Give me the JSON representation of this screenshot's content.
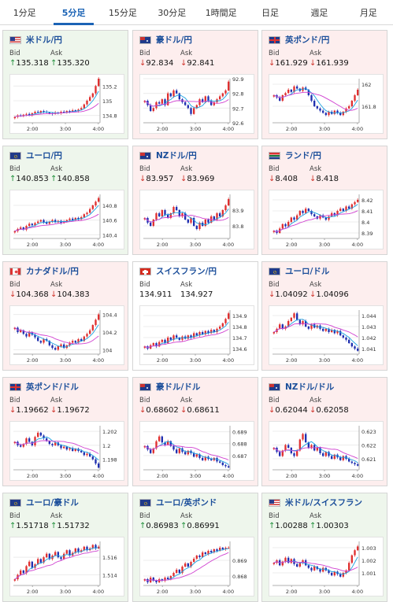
{
  "tabs": [
    {
      "label": "1分足",
      "active": false
    },
    {
      "label": "5分足",
      "active": true
    },
    {
      "label": "15分足",
      "active": false
    },
    {
      "label": "30分足",
      "active": false
    },
    {
      "label": "1時間足",
      "active": false
    },
    {
      "label": "日足",
      "active": false
    },
    {
      "label": "週足",
      "active": false
    },
    {
      "label": "月足",
      "active": false
    }
  ],
  "labels": {
    "bid": "Bid",
    "ask": "Ask"
  },
  "colors": {
    "up_bg": "#eef6ec",
    "down_bg": "#fdeeee",
    "candle_up": "#e03030",
    "candle_down": "#2030b0",
    "ma_fast": "#1aa0e0",
    "ma_slow": "#d040d0"
  },
  "cards": [
    {
      "pair": "米ドル/円",
      "flag": "us-jp",
      "trend": "up",
      "bid": "135.318",
      "ask": "135.320",
      "dir": "up",
      "chart_data": {
        "type": "candlestick",
        "x_ticks": [
          "2:00",
          "3:00",
          "4:00"
        ],
        "y_ticks": [
          "135.2",
          "135",
          "134.8"
        ],
        "ylim": [
          134.7,
          135.3
        ],
        "tick_values": [
          135.2,
          135.0,
          134.8
        ],
        "closes": [
          134.78,
          134.8,
          134.79,
          134.81,
          134.82,
          134.8,
          134.83,
          134.85,
          134.84,
          134.86,
          134.85,
          134.84,
          134.83,
          134.82,
          134.84,
          134.83,
          134.85,
          134.84,
          134.86,
          134.85,
          134.87,
          134.86,
          134.88,
          134.9,
          134.95,
          135.0,
          135.05,
          135.1,
          135.2,
          135.3
        ]
      }
    },
    {
      "pair": "豪ドル/円",
      "flag": "au-jp",
      "trend": "down",
      "bid": "92.834",
      "ask": "92.841",
      "dir": "down",
      "chart_data": {
        "type": "candlestick",
        "x_ticks": [
          "2:00",
          "3:00",
          "4:00"
        ],
        "y_ticks": [
          "92.9",
          "92.8",
          "92.7",
          "92.6"
        ],
        "ylim": [
          92.6,
          92.9
        ],
        "tick_values": [
          92.9,
          92.8,
          92.7,
          92.6
        ],
        "closes": [
          92.75,
          92.72,
          92.68,
          92.7,
          92.74,
          92.73,
          92.76,
          92.72,
          92.8,
          92.78,
          92.82,
          92.8,
          92.76,
          92.74,
          92.72,
          92.7,
          92.66,
          92.7,
          92.72,
          92.76,
          92.74,
          92.78,
          92.75,
          92.72,
          92.74,
          92.76,
          92.78,
          92.8,
          92.82,
          92.88
        ]
      }
    },
    {
      "pair": "英ポンド/円",
      "flag": "gb-jp",
      "trend": "down",
      "bid": "161.929",
      "ask": "161.939",
      "dir": "down",
      "chart_data": {
        "type": "candlestick",
        "x_ticks": [
          "2:00",
          "3:00",
          "4:00"
        ],
        "y_ticks": [
          "162",
          "161.8"
        ],
        "ylim": [
          161.65,
          162.05
        ],
        "tick_values": [
          162.0,
          161.8
        ],
        "closes": [
          161.9,
          161.88,
          161.85,
          161.9,
          161.92,
          161.95,
          161.93,
          161.98,
          161.96,
          161.94,
          161.97,
          161.95,
          161.9,
          161.85,
          161.8,
          161.78,
          161.76,
          161.74,
          161.72,
          161.75,
          161.73,
          161.76,
          161.74,
          161.72,
          161.75,
          161.78,
          161.8,
          161.85,
          161.9,
          161.95
        ]
      }
    },
    {
      "pair": "ユーロ/円",
      "flag": "eu-jp",
      "trend": "up",
      "bid": "140.853",
      "ask": "140.858",
      "dir": "up",
      "chart_data": {
        "type": "candlestick",
        "x_ticks": [
          "2:00",
          "3:00",
          "4:00"
        ],
        "y_ticks": [
          "140.8",
          "140.6",
          "140.4"
        ],
        "ylim": [
          140.35,
          140.95
        ],
        "tick_values": [
          140.8,
          140.6,
          140.4
        ],
        "closes": [
          140.45,
          140.48,
          140.5,
          140.47,
          140.52,
          140.55,
          140.53,
          140.56,
          140.58,
          140.6,
          140.57,
          140.55,
          140.58,
          140.6,
          140.57,
          140.59,
          140.56,
          140.58,
          140.6,
          140.62,
          140.6,
          140.63,
          140.61,
          140.64,
          140.68,
          140.7,
          140.75,
          140.8,
          140.85,
          140.9
        ]
      }
    },
    {
      "pair": "NZドル/円",
      "flag": "nz-jp",
      "trend": "down",
      "bid": "83.957",
      "ask": "83.969",
      "dir": "down",
      "chart_data": {
        "type": "candlestick",
        "x_ticks": [
          "2:00",
          "3:00",
          "4:00"
        ],
        "y_ticks": [
          "83.9",
          "83.8"
        ],
        "ylim": [
          83.72,
          84.0
        ],
        "tick_values": [
          83.9,
          83.8
        ],
        "closes": [
          83.85,
          83.82,
          83.8,
          83.84,
          83.88,
          83.86,
          83.9,
          83.87,
          83.85,
          83.88,
          83.92,
          83.9,
          83.86,
          83.88,
          83.84,
          83.82,
          83.85,
          83.8,
          83.78,
          83.82,
          83.8,
          83.84,
          83.82,
          83.86,
          83.84,
          83.88,
          83.86,
          83.9,
          83.93,
          83.97
        ]
      }
    },
    {
      "pair": "ランド/円",
      "flag": "za-jp",
      "trend": "down",
      "bid": "8.408",
      "ask": "8.418",
      "dir": "down",
      "chart_data": {
        "type": "candlestick",
        "x_ticks": [
          "2:00",
          "3:00",
          "4:00"
        ],
        "y_ticks": [
          "8.42",
          "8.41",
          "8.4",
          "8.39"
        ],
        "ylim": [
          8.385,
          8.425
        ],
        "tick_values": [
          8.42,
          8.41,
          8.4,
          8.39
        ],
        "closes": [
          8.392,
          8.39,
          8.394,
          8.398,
          8.396,
          8.4,
          8.404,
          8.402,
          8.406,
          8.41,
          8.408,
          8.412,
          8.41,
          8.407,
          8.405,
          8.403,
          8.406,
          8.404,
          8.402,
          8.405,
          8.408,
          8.406,
          8.41,
          8.412,
          8.41,
          8.414,
          8.412,
          8.416,
          8.418,
          8.42
        ]
      }
    },
    {
      "pair": "カナダドル/円",
      "flag": "ca-jp",
      "trend": "down",
      "bid": "104.368",
      "ask": "104.383",
      "dir": "down",
      "chart_data": {
        "type": "candlestick",
        "x_ticks": [
          "2:00",
          "3:00",
          "4:00"
        ],
        "y_ticks": [
          "104.4",
          "104.2",
          "104"
        ],
        "ylim": [
          103.95,
          104.45
        ],
        "tick_values": [
          104.4,
          104.2,
          104.0
        ],
        "closes": [
          104.25,
          104.2,
          104.22,
          104.18,
          104.15,
          104.2,
          104.17,
          104.14,
          104.1,
          104.08,
          104.12,
          104.1,
          104.05,
          104.02,
          104.0,
          104.04,
          104.06,
          104.02,
          104.05,
          104.08,
          104.1,
          104.08,
          104.12,
          104.1,
          104.15,
          104.18,
          104.22,
          104.28,
          104.34,
          104.4
        ]
      }
    },
    {
      "pair": "スイスフラン/円",
      "flag": "ch-jp",
      "trend": "flat",
      "bid": "134.911",
      "ask": "134.927",
      "dir": "none",
      "chart_data": {
        "type": "candlestick",
        "x_ticks": [
          "2:00",
          "3:00",
          "4:00"
        ],
        "y_ticks": [
          "134.9",
          "134.8",
          "134.7",
          "134.6"
        ],
        "ylim": [
          134.55,
          134.95
        ],
        "tick_values": [
          134.9,
          134.8,
          134.7,
          134.6
        ],
        "closes": [
          134.62,
          134.6,
          134.63,
          134.65,
          134.62,
          134.66,
          134.68,
          134.65,
          134.7,
          134.68,
          134.72,
          134.7,
          134.68,
          134.71,
          134.69,
          134.72,
          134.7,
          134.74,
          134.72,
          134.75,
          134.73,
          134.76,
          134.74,
          134.77,
          134.75,
          134.78,
          134.8,
          134.83,
          134.87,
          134.92
        ]
      }
    },
    {
      "pair": "ユーロ/ドル",
      "flag": "eu-us",
      "trend": "down",
      "bid": "1.04092",
      "ask": "1.04096",
      "dir": "down",
      "chart_data": {
        "type": "candlestick",
        "x_ticks": [
          "2:00",
          "3:00",
          "4:00"
        ],
        "y_ticks": [
          "1.044",
          "1.043",
          "1.042",
          "1.041"
        ],
        "ylim": [
          1.0405,
          1.0445
        ],
        "tick_values": [
          1.044,
          1.043,
          1.042,
          1.041
        ],
        "closes": [
          1.0425,
          1.0428,
          1.0432,
          1.0428,
          1.043,
          1.0435,
          1.0438,
          1.0442,
          1.0436,
          1.0432,
          1.0435,
          1.043,
          1.0428,
          1.0432,
          1.0429,
          1.0431,
          1.0428,
          1.0426,
          1.0428,
          1.0425,
          1.0427,
          1.0424,
          1.0426,
          1.0422,
          1.042,
          1.0418,
          1.0415,
          1.0412,
          1.041,
          1.0408
        ]
      }
    },
    {
      "pair": "英ポンド/ドル",
      "flag": "gb-us",
      "trend": "down",
      "bid": "1.19662",
      "ask": "1.19672",
      "dir": "down",
      "chart_data": {
        "type": "candlestick",
        "x_ticks": [
          "2:00",
          "3:00",
          "4:00"
        ],
        "y_ticks": [
          "1.202",
          "1.2",
          "1.198"
        ],
        "ylim": [
          1.1965,
          1.2028
        ],
        "tick_values": [
          1.202,
          1.2,
          1.198
        ],
        "closes": [
          1.2005,
          1.2,
          1.1998,
          1.2002,
          1.201,
          1.2005,
          1.2,
          1.2012,
          1.2018,
          1.2014,
          1.201,
          1.2006,
          1.2002,
          1.2,
          1.2004,
          1.2,
          1.1996,
          1.1998,
          1.1994,
          1.1996,
          1.1992,
          1.1995,
          1.1992,
          1.199,
          1.1986,
          1.1988,
          1.1984,
          1.198,
          1.1974,
          1.1968
        ]
      }
    },
    {
      "pair": "豪ドル/ドル",
      "flag": "au-us",
      "trend": "down",
      "bid": "0.68602",
      "ask": "0.68611",
      "dir": "down",
      "chart_data": {
        "type": "candlestick",
        "x_ticks": [
          "2:00",
          "3:00",
          "4:00"
        ],
        "y_ticks": [
          "0.689",
          "0.688",
          "0.687"
        ],
        "ylim": [
          0.6858,
          0.6895
        ],
        "tick_values": [
          0.689,
          0.688,
          0.687
        ],
        "closes": [
          0.6878,
          0.6875,
          0.6872,
          0.6876,
          0.6882,
          0.6886,
          0.6881,
          0.6879,
          0.6882,
          0.6878,
          0.6875,
          0.6872,
          0.6876,
          0.6873,
          0.6871,
          0.6874,
          0.6872,
          0.6869,
          0.6871,
          0.6868,
          0.6866,
          0.6869,
          0.6867,
          0.6866,
          0.6868,
          0.6865,
          0.6864,
          0.6862,
          0.6861,
          0.686
        ]
      }
    },
    {
      "pair": "NZドル/ドル",
      "flag": "nz-us",
      "trend": "down",
      "bid": "0.62044",
      "ask": "0.62058",
      "dir": "down",
      "chart_data": {
        "type": "candlestick",
        "x_ticks": [
          "2:00",
          "3:00",
          "4:00"
        ],
        "y_ticks": [
          "0.623",
          "0.622",
          "0.621"
        ],
        "ylim": [
          0.6202,
          0.6234
        ],
        "tick_values": [
          0.623,
          0.622,
          0.621
        ],
        "closes": [
          0.6218,
          0.6215,
          0.6212,
          0.6216,
          0.622,
          0.6218,
          0.6214,
          0.6212,
          0.6216,
          0.6224,
          0.6228,
          0.6222,
          0.6218,
          0.622,
          0.6216,
          0.6218,
          0.6214,
          0.6212,
          0.6215,
          0.6212,
          0.621,
          0.6213,
          0.6211,
          0.6209,
          0.6212,
          0.621,
          0.6208,
          0.6207,
          0.6206,
          0.6205
        ]
      }
    },
    {
      "pair": "ユーロ/豪ドル",
      "flag": "eu-au",
      "trend": "up",
      "bid": "1.51718",
      "ask": "1.51732",
      "dir": "up",
      "chart_data": {
        "type": "candlestick",
        "x_ticks": [
          "2:00",
          "3:00",
          "4:00"
        ],
        "y_ticks": [
          "1.516",
          "1.514"
        ],
        "ylim": [
          1.5128,
          1.5178
        ],
        "tick_values": [
          1.516,
          1.514
        ],
        "closes": [
          1.5135,
          1.514,
          1.5145,
          1.5142,
          1.515,
          1.5155,
          1.5148,
          1.5152,
          1.5158,
          1.5154,
          1.516,
          1.5164,
          1.5158,
          1.5162,
          1.5166,
          1.516,
          1.5158,
          1.5164,
          1.5168,
          1.5162,
          1.5165,
          1.517,
          1.5166,
          1.5168,
          1.5172,
          1.5168,
          1.517,
          1.5174,
          1.517,
          1.5172
        ]
      }
    },
    {
      "pair": "ユーロ/英ポンド",
      "flag": "eu-gb",
      "trend": "up",
      "bid": "0.86983",
      "ask": "0.86991",
      "dir": "up",
      "chart_data": {
        "type": "candlestick",
        "x_ticks": [
          "2:00",
          "3:00",
          "4:00"
        ],
        "y_ticks": [
          "0.869",
          "0.868"
        ],
        "ylim": [
          0.8674,
          0.8702
        ],
        "tick_values": [
          0.869,
          0.868
        ],
        "closes": [
          0.8678,
          0.8676,
          0.8679,
          0.8677,
          0.8676,
          0.8678,
          0.8677,
          0.8679,
          0.8678,
          0.868,
          0.8682,
          0.8684,
          0.8682,
          0.8686,
          0.8688,
          0.8686,
          0.8689,
          0.8691,
          0.8693,
          0.8692,
          0.8695,
          0.8694,
          0.8696,
          0.8695,
          0.8697,
          0.8696,
          0.8698,
          0.8697,
          0.8698,
          0.8698
        ]
      }
    },
    {
      "pair": "米ドル/スイスフラン",
      "flag": "us-ch",
      "trend": "up",
      "bid": "1.00288",
      "ask": "1.00303",
      "dir": "up",
      "chart_data": {
        "type": "candlestick",
        "x_ticks": [
          "2:00",
          "3:00",
          "4:00"
        ],
        "y_ticks": [
          "1.003",
          "1.002",
          "1.001"
        ],
        "ylim": [
          1.0,
          1.0035
        ],
        "tick_values": [
          1.003,
          1.002,
          1.001
        ],
        "closes": [
          1.0018,
          1.002,
          1.0016,
          1.0019,
          1.0022,
          1.0018,
          1.0021,
          1.0017,
          1.0015,
          1.0018,
          1.002,
          1.0016,
          1.0014,
          1.0012,
          1.0015,
          1.0013,
          1.0011,
          1.0014,
          1.0012,
          1.001,
          1.0008,
          1.0011,
          1.0009,
          1.0007,
          1.001,
          1.0012,
          1.0018,
          1.0024,
          1.0028,
          1.0031
        ]
      }
    }
  ]
}
